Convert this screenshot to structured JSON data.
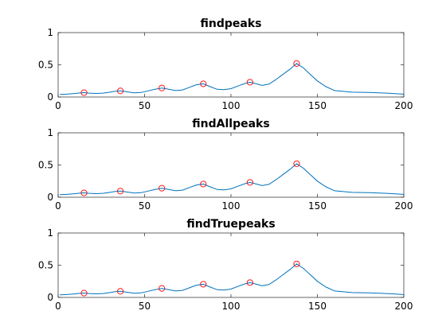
{
  "figure": {
    "background": "#ffffff",
    "line_color": "#0072bd",
    "marker_color": "#ff0000",
    "marker_shape": "open-circle"
  },
  "chart_data": [
    {
      "type": "line",
      "title": "findpeaks",
      "xlabel": "",
      "ylabel": "",
      "xlim": [
        0,
        200
      ],
      "ylim": [
        0,
        1
      ],
      "xticks": [
        0,
        50,
        100,
        150,
        200
      ],
      "yticks": [
        0,
        0.5,
        1
      ],
      "grid": false,
      "series": [
        {
          "x": [
            1,
            5,
            10,
            13,
            15,
            18,
            22,
            26,
            30,
            33,
            36,
            40,
            44,
            48,
            52,
            56,
            60,
            64,
            68,
            72,
            76,
            80,
            84,
            88,
            92,
            96,
            100,
            104,
            108,
            111,
            114,
            118,
            122,
            126,
            130,
            134,
            138,
            142,
            146,
            150,
            155,
            160,
            170,
            180,
            190,
            200
          ],
          "y": [
            0.04,
            0.045,
            0.055,
            0.065,
            0.068,
            0.06,
            0.055,
            0.06,
            0.075,
            0.09,
            0.095,
            0.08,
            0.065,
            0.07,
            0.095,
            0.12,
            0.14,
            0.12,
            0.1,
            0.11,
            0.15,
            0.19,
            0.205,
            0.16,
            0.12,
            0.115,
            0.13,
            0.17,
            0.21,
            0.23,
            0.21,
            0.18,
            0.2,
            0.27,
            0.35,
            0.43,
            0.52,
            0.45,
            0.35,
            0.25,
            0.16,
            0.1,
            0.075,
            0.07,
            0.06,
            0.045
          ]
        }
      ],
      "peaks": {
        "x": [
          15,
          36,
          60,
          84,
          111,
          138
        ],
        "y": [
          0.068,
          0.095,
          0.14,
          0.205,
          0.23,
          0.52
        ]
      }
    },
    {
      "type": "line",
      "title": "findAllpeaks",
      "xlabel": "",
      "ylabel": "",
      "xlim": [
        0,
        200
      ],
      "ylim": [
        0,
        1
      ],
      "xticks": [
        0,
        50,
        100,
        150,
        200
      ],
      "yticks": [
        0,
        0.5,
        1
      ],
      "grid": false,
      "series": [
        {
          "x": [
            1,
            5,
            10,
            13,
            15,
            18,
            22,
            26,
            30,
            33,
            36,
            40,
            44,
            48,
            52,
            56,
            60,
            64,
            68,
            72,
            76,
            80,
            84,
            88,
            92,
            96,
            100,
            104,
            108,
            111,
            114,
            118,
            122,
            126,
            130,
            134,
            138,
            142,
            146,
            150,
            155,
            160,
            170,
            180,
            190,
            200
          ],
          "y": [
            0.04,
            0.045,
            0.055,
            0.065,
            0.068,
            0.06,
            0.055,
            0.06,
            0.075,
            0.09,
            0.095,
            0.08,
            0.065,
            0.07,
            0.095,
            0.12,
            0.14,
            0.12,
            0.1,
            0.11,
            0.15,
            0.19,
            0.205,
            0.16,
            0.12,
            0.115,
            0.13,
            0.17,
            0.21,
            0.23,
            0.21,
            0.18,
            0.2,
            0.27,
            0.35,
            0.43,
            0.52,
            0.45,
            0.35,
            0.25,
            0.16,
            0.1,
            0.075,
            0.07,
            0.06,
            0.045
          ]
        }
      ],
      "peaks": {
        "x": [
          15,
          36,
          60,
          84,
          111,
          138
        ],
        "y": [
          0.068,
          0.095,
          0.14,
          0.205,
          0.23,
          0.52
        ]
      }
    },
    {
      "type": "line",
      "title": "findTruepeaks",
      "xlabel": "",
      "ylabel": "",
      "xlim": [
        0,
        200
      ],
      "ylim": [
        0,
        1
      ],
      "xticks": [
        0,
        50,
        100,
        150,
        200
      ],
      "yticks": [
        0,
        0.5,
        1
      ],
      "grid": false,
      "series": [
        {
          "x": [
            1,
            5,
            10,
            13,
            15,
            18,
            22,
            26,
            30,
            33,
            36,
            40,
            44,
            48,
            52,
            56,
            60,
            64,
            68,
            72,
            76,
            80,
            84,
            88,
            92,
            96,
            100,
            104,
            108,
            111,
            114,
            118,
            122,
            126,
            130,
            134,
            138,
            142,
            146,
            150,
            155,
            160,
            170,
            180,
            190,
            200
          ],
          "y": [
            0.04,
            0.045,
            0.055,
            0.065,
            0.068,
            0.06,
            0.055,
            0.06,
            0.075,
            0.09,
            0.095,
            0.08,
            0.065,
            0.07,
            0.095,
            0.12,
            0.14,
            0.12,
            0.1,
            0.11,
            0.15,
            0.19,
            0.205,
            0.16,
            0.12,
            0.115,
            0.13,
            0.17,
            0.21,
            0.23,
            0.21,
            0.18,
            0.2,
            0.27,
            0.35,
            0.43,
            0.52,
            0.45,
            0.35,
            0.25,
            0.16,
            0.1,
            0.075,
            0.07,
            0.06,
            0.045
          ]
        }
      ],
      "peaks": {
        "x": [
          15,
          36,
          60,
          84,
          111,
          138
        ],
        "y": [
          0.068,
          0.095,
          0.14,
          0.205,
          0.23,
          0.52
        ]
      }
    }
  ]
}
